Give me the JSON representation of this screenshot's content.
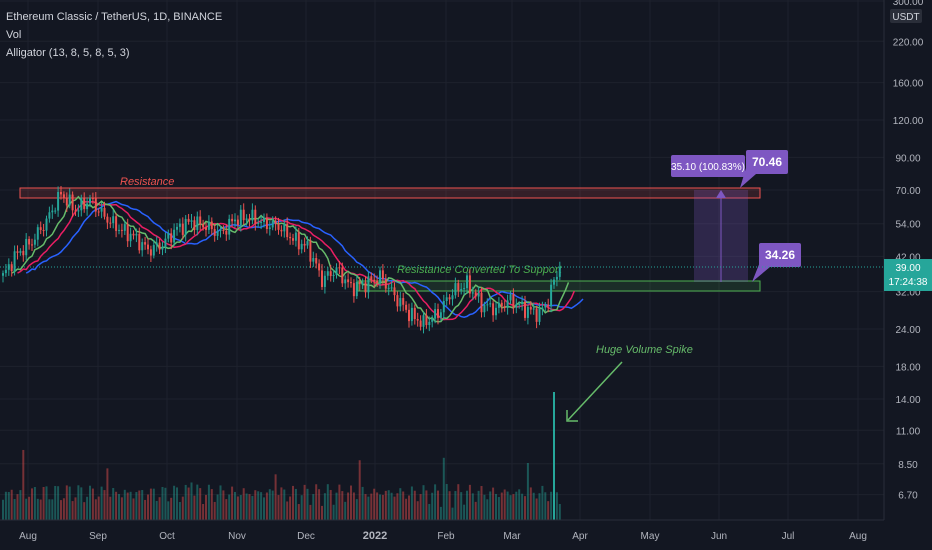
{
  "legend": {
    "symbol_line": "Ethereum Classic / TetherUS, 1D, BINANCE",
    "vol_line": "Vol",
    "alligator_line": "Alligator (13, 8, 5, 8, 5, 3)"
  },
  "price_axis": {
    "currency": "USDT",
    "ticks": [
      "300.00",
      "220.00",
      "160.00",
      "120.00",
      "90.00",
      "70.00",
      "54.00",
      "42.00",
      "32.00",
      "24.00",
      "18.00",
      "14.00",
      "11.00",
      "8.50",
      "6.70"
    ],
    "last_price": "39.00",
    "countdown": "17:24:38"
  },
  "time_axis": {
    "ticks": [
      "Aug",
      "Sep",
      "Oct",
      "Nov",
      "Dec",
      "2022",
      "Feb",
      "Mar",
      "Apr",
      "May",
      "Jun",
      "Jul",
      "Aug"
    ]
  },
  "annotations": {
    "resistance": "Resistance",
    "support": "Resistance Converted To Support",
    "volume_spike": "Huge Volume Spike",
    "measure": "35.10 (100.83%)",
    "target_price": "70.46",
    "entry_price": "34.26"
  },
  "colors": {
    "background": "#131722",
    "up": "#26a69a",
    "down": "#ef5350",
    "jaw": "#2962ff",
    "teeth": "#e91e63",
    "lips": "#66bb6a",
    "resistance": "#ef5350",
    "support": "#4caf50",
    "measure": "#7e57c2"
  },
  "chart_data": {
    "type": "candlestick",
    "scale": "log",
    "ylim": [
      5.5,
      300
    ],
    "current_price": 39.0,
    "resistance_zone": [
      65,
      70
    ],
    "support_zone": [
      31.5,
      35
    ],
    "target": 70.46,
    "entry": 34.26,
    "price_anchors": [
      [
        0,
        36
      ],
      [
        5,
        43
      ],
      [
        10,
        47
      ],
      [
        15,
        55
      ],
      [
        20,
        68
      ],
      [
        25,
        60
      ],
      [
        30,
        65
      ],
      [
        35,
        57
      ],
      [
        40,
        52
      ],
      [
        45,
        49
      ],
      [
        50,
        44
      ],
      [
        55,
        46
      ],
      [
        60,
        52
      ],
      [
        65,
        55
      ],
      [
        70,
        53
      ],
      [
        75,
        50
      ],
      [
        80,
        56
      ],
      [
        85,
        57
      ],
      [
        90,
        54
      ],
      [
        95,
        53
      ],
      [
        100,
        48
      ],
      [
        105,
        45
      ],
      [
        110,
        35
      ],
      [
        115,
        38
      ],
      [
        120,
        33
      ],
      [
        125,
        34
      ],
      [
        130,
        36
      ],
      [
        135,
        31
      ],
      [
        140,
        27
      ],
      [
        145,
        25
      ],
      [
        150,
        27
      ],
      [
        155,
        32
      ],
      [
        160,
        34
      ],
      [
        165,
        29
      ],
      [
        170,
        28
      ],
      [
        175,
        30
      ],
      [
        180,
        28
      ],
      [
        185,
        27
      ],
      [
        188,
        30
      ],
      [
        191,
        37
      ],
      [
        192,
        39
      ]
    ],
    "volume_spike_index": 190,
    "volume_spike_value": 14.5
  }
}
